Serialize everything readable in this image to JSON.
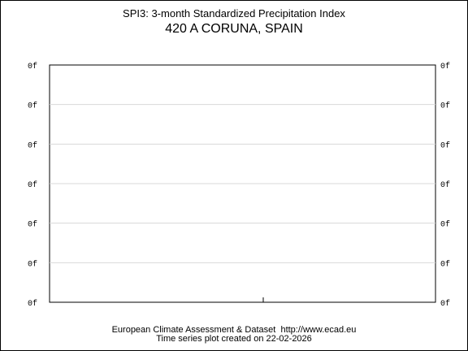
{
  "chart_data": {
    "type": "line",
    "title": "SPI3: 3-month Standardized Precipitation Index",
    "subtitle": "420 A CORUNA, SPAIN",
    "xlabel": "",
    "ylabel": "",
    "y_tick_labels": [
      "0f",
      "0f",
      "0f",
      "0f",
      "0f",
      "0f",
      "0f"
    ],
    "grid": true,
    "series": []
  },
  "footer": {
    "line1": "European Climate Assessment & Dataset  http://www.ecad.eu",
    "line2": "Time series plot created on 22-02-2026"
  }
}
